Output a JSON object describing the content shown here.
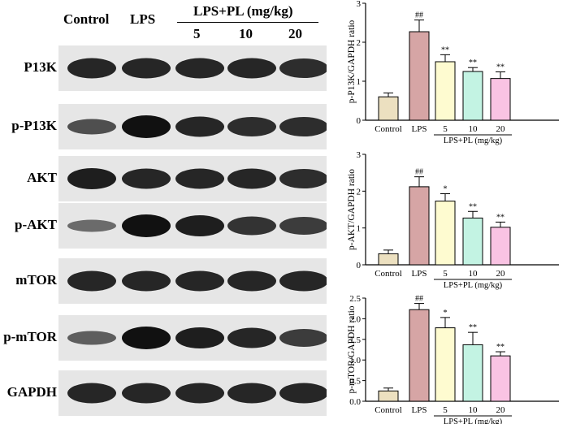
{
  "blot": {
    "headers": {
      "control": "Control",
      "lps": "LPS",
      "group": "LPS+PL (mg/kg)",
      "doses": [
        "5",
        "10",
        "20"
      ]
    },
    "rows": [
      {
        "label": "P13K",
        "intensity": [
          0.85,
          0.85,
          0.85,
          0.85,
          0.8
        ]
      },
      {
        "label": "p-P13K",
        "intensity": [
          0.55,
          1.0,
          0.85,
          0.8,
          0.8
        ]
      },
      {
        "label": "AKT",
        "intensity": [
          0.9,
          0.85,
          0.85,
          0.85,
          0.8
        ]
      },
      {
        "label": "p-AKT",
        "intensity": [
          0.35,
          1.0,
          0.9,
          0.75,
          0.7
        ]
      },
      {
        "label": "mTOR",
        "intensity": [
          0.85,
          0.85,
          0.85,
          0.85,
          0.85
        ]
      },
      {
        "label": "p-mTOR",
        "intensity": [
          0.45,
          1.0,
          0.9,
          0.85,
          0.7
        ]
      },
      {
        "label": "GAPDH",
        "intensity": [
          0.85,
          0.85,
          0.85,
          0.85,
          0.85
        ]
      }
    ]
  },
  "colors": {
    "control": "#ece0c0",
    "lps": "#d6a5a5",
    "dose5": "#fefbd0",
    "dose10": "#c3f3e3",
    "dose20": "#f9c3e3",
    "band": "#111111",
    "background": "#e6e6e6"
  },
  "chart_data": [
    {
      "type": "bar",
      "ylabel": "p-P13K/GAPDH ratio",
      "categories": [
        "Control",
        "LPS",
        "5",
        "10",
        "20"
      ],
      "group_label": "LPS+PL (mg/kg)",
      "values": [
        0.6,
        2.27,
        1.5,
        1.25,
        1.07
      ],
      "errors": [
        0.1,
        0.3,
        0.18,
        0.1,
        0.17
      ],
      "annotations": [
        "",
        "##",
        "**",
        "**",
        "**"
      ],
      "ylim": [
        0,
        3
      ],
      "yticks": [
        "0",
        "1",
        "2",
        "3"
      ],
      "legend": "none",
      "grid": false
    },
    {
      "type": "bar",
      "ylabel": "p-AKT/GAPDH ratio",
      "categories": [
        "Control",
        "LPS",
        "5",
        "10",
        "20"
      ],
      "group_label": "LPS+PL (mg/kg)",
      "values": [
        0.3,
        2.12,
        1.73,
        1.27,
        1.02
      ],
      "errors": [
        0.1,
        0.27,
        0.2,
        0.18,
        0.14
      ],
      "annotations": [
        "",
        "##",
        "*",
        "**",
        "**"
      ],
      "ylim": [
        0,
        3
      ],
      "yticks": [
        "0",
        "1",
        "2",
        "3"
      ],
      "legend": "none",
      "grid": false
    },
    {
      "type": "bar",
      "ylabel": "p-mTOR/GAPDH ratio",
      "categories": [
        "Control",
        "LPS",
        "5",
        "10",
        "20"
      ],
      "group_label": "LPS+PL (mg/kg)",
      "values": [
        0.25,
        2.22,
        1.78,
        1.37,
        1.1
      ],
      "errors": [
        0.07,
        0.15,
        0.25,
        0.3,
        0.1
      ],
      "annotations": [
        "",
        "##",
        "*",
        "**",
        "**"
      ],
      "ylim": [
        0,
        2.5
      ],
      "yticks": [
        "0.0",
        "0.5",
        "1.0",
        "1.5",
        "2.0",
        "2.5"
      ],
      "legend": "none",
      "grid": false
    }
  ]
}
